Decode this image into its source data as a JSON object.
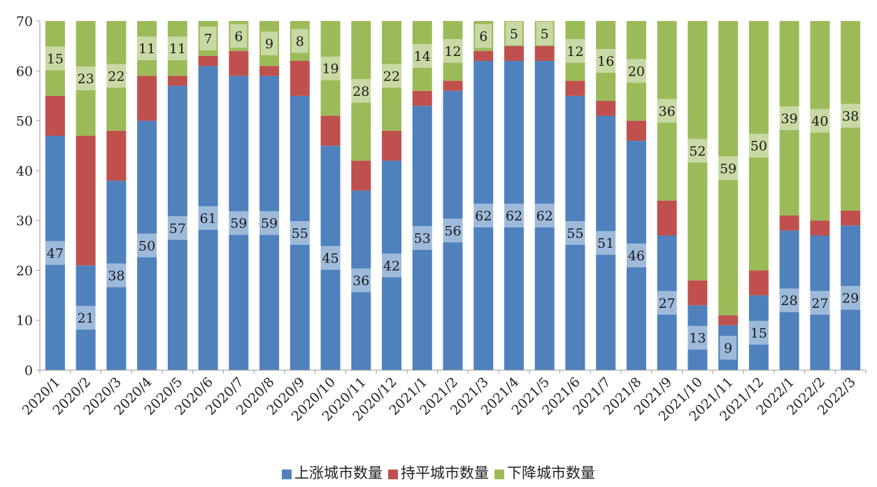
{
  "chart_data": {
    "type": "bar",
    "stacked": true,
    "categories": [
      "2020/1",
      "2020/2",
      "2020/3",
      "2020/4",
      "2020/5",
      "2020/6",
      "2020/7",
      "2020/8",
      "2020/9",
      "2020/10",
      "2020/11",
      "2020/12",
      "2021/1",
      "2021/2",
      "2021/3",
      "2021/4",
      "2021/5",
      "2021/6",
      "2021/7",
      "2021/8",
      "2021/9",
      "2021/10",
      "2021/11",
      "2021/12",
      "2022/1",
      "2022/2",
      "2022/3"
    ],
    "series": [
      {
        "name": "上涨城市数量",
        "color": "#4f81bd",
        "label_values": true,
        "values": [
          47,
          21,
          38,
          50,
          57,
          61,
          59,
          59,
          55,
          45,
          36,
          42,
          53,
          56,
          62,
          62,
          62,
          55,
          51,
          46,
          27,
          13,
          9,
          15,
          28,
          27,
          29
        ]
      },
      {
        "name": "持平城市数量",
        "color": "#c0504d",
        "label_values": false,
        "values": [
          8,
          26,
          10,
          9,
          2,
          2,
          5,
          2,
          7,
          6,
          6,
          6,
          3,
          2,
          2,
          3,
          3,
          3,
          3,
          4,
          7,
          5,
          2,
          5,
          3,
          3,
          3
        ]
      },
      {
        "name": "下降城市数量",
        "color": "#9bbb59",
        "label_values": true,
        "values": [
          15,
          23,
          22,
          11,
          11,
          7,
          6,
          9,
          8,
          19,
          28,
          22,
          14,
          12,
          6,
          5,
          5,
          12,
          16,
          20,
          36,
          52,
          59,
          50,
          39,
          40,
          38
        ]
      }
    ],
    "ylim": [
      0,
      70
    ],
    "yticks": [
      0,
      10,
      20,
      30,
      40,
      50,
      60,
      70
    ],
    "title": "",
    "xlabel": "",
    "ylabel": "",
    "grid": false,
    "legend_position": "bottom"
  }
}
